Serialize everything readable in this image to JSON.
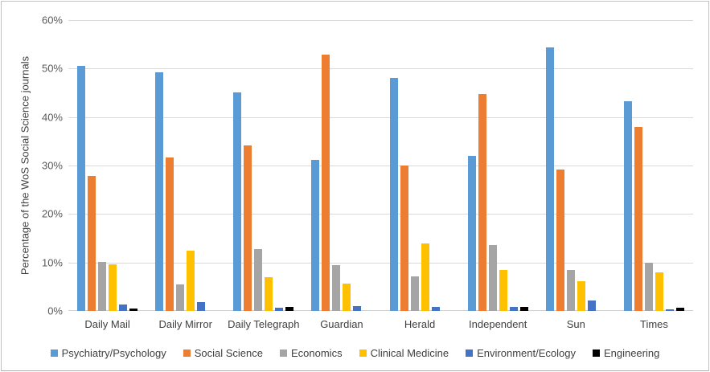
{
  "chart_data": {
    "type": "bar",
    "title": "",
    "xlabel": "",
    "ylabel": "Percentage of the WoS Social Science journals",
    "ylim": [
      0,
      60
    ],
    "ytick_step": 10,
    "ytick_labels": [
      "0%",
      "10%",
      "20%",
      "30%",
      "40%",
      "50%",
      "60%"
    ],
    "grid": true,
    "legend_position": "bottom",
    "categories": [
      "Daily Mail",
      "Daily Mirror",
      "Daily Telegraph",
      "Guardian",
      "Herald",
      "Independent",
      "Sun",
      "Times"
    ],
    "series": [
      {
        "name": "Psychiatry/Psychology",
        "color": "#5B9BD5",
        "values": [
          50.5,
          49.2,
          45.1,
          31.2,
          48.1,
          32.0,
          54.3,
          43.2
        ]
      },
      {
        "name": "Social Science",
        "color": "#ED7D31",
        "values": [
          27.8,
          31.6,
          34.1,
          52.9,
          30.0,
          44.8,
          29.2,
          38.0
        ]
      },
      {
        "name": "Economics",
        "color": "#A5A5A5",
        "values": [
          10.1,
          5.4,
          12.8,
          9.5,
          7.1,
          13.6,
          8.4,
          9.9
        ]
      },
      {
        "name": "Clinical Medicine",
        "color": "#FFC000",
        "values": [
          9.7,
          12.4,
          7.0,
          5.6,
          14.0,
          8.5,
          6.2,
          7.9
        ]
      },
      {
        "name": "Environment/Ecology",
        "color": "#4472C4",
        "values": [
          1.4,
          1.8,
          0.6,
          1.0,
          0.9,
          0.8,
          2.2,
          0.4
        ]
      },
      {
        "name": "Engineering",
        "color": "#000000",
        "values": [
          0.5,
          0,
          0.8,
          0,
          0,
          0.9,
          0,
          0.7
        ]
      }
    ]
  },
  "colors": {
    "gridline": "#d9d9d9",
    "axis_text": "#595959",
    "label_text": "#404040"
  }
}
